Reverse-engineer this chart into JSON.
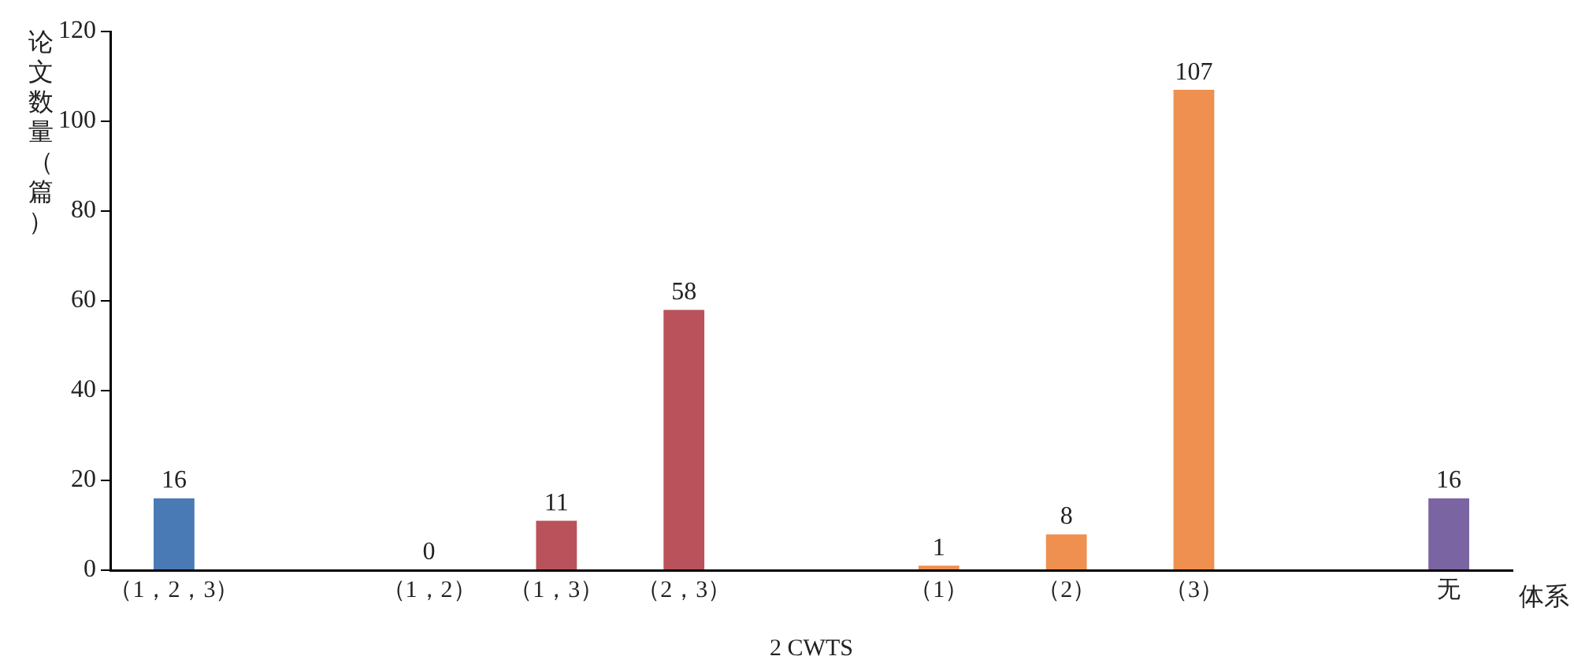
{
  "chart_data": {
    "type": "bar",
    "ylabel": "论文数量（篇）",
    "xlabel": "体系",
    "categories": [
      "（1，2，3）",
      null,
      "（1，2）",
      "（1，3）",
      "（2，3）",
      null,
      "（1）",
      "（2）",
      "（3）",
      null,
      "无"
    ],
    "values": [
      16,
      null,
      0,
      11,
      58,
      null,
      1,
      8,
      107,
      null,
      16
    ],
    "colors": [
      "#4a7ab5",
      null,
      "#b9525a",
      "#b9525a",
      "#b9525a",
      null,
      "#ef8f50",
      "#ef8f50",
      "#ef8f50",
      null,
      "#7b64a2"
    ],
    "ylim": [
      0,
      120
    ],
    "yticks": [
      0,
      20,
      40,
      60,
      80,
      100,
      120
    ],
    "grid": false,
    "legend": false,
    "data_labels": true,
    "annotations": [
      "2 CWTS"
    ]
  }
}
